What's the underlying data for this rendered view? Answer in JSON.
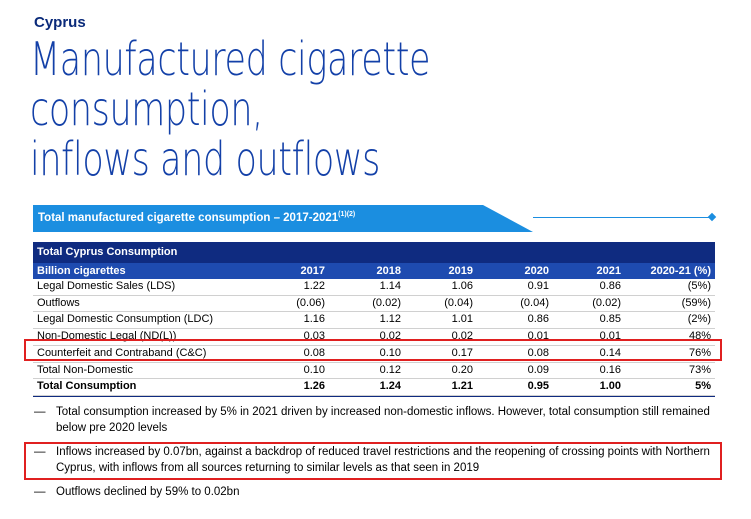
{
  "header": {
    "country": "Cyprus",
    "title_line1": "Manufactured cigarette consumption,",
    "title_line2": "inflows and outflows"
  },
  "banner": {
    "title": "Total manufactured cigarette consumption – 2017-2021",
    "superscript": "(1)(2)"
  },
  "table": {
    "section_title": "Total Cyprus Consumption",
    "columns": [
      "Billion cigarettes",
      "2017",
      "2018",
      "2019",
      "2020",
      "2021",
      "2020-21 (%)"
    ],
    "rows": [
      {
        "label": "Legal Domestic Sales (LDS)",
        "values": [
          "1.22",
          "1.14",
          "1.06",
          "0.91",
          "0.86",
          "(5%)"
        ]
      },
      {
        "label": "Outflows",
        "values": [
          "(0.06)",
          "(0.02)",
          "(0.04)",
          "(0.04)",
          "(0.02)",
          "(59%)"
        ]
      },
      {
        "label": "Legal Domestic Consumption (LDC)",
        "values": [
          "1.16",
          "1.12",
          "1.01",
          "0.86",
          "0.85",
          "(2%)"
        ]
      },
      {
        "label": "Non-Domestic Legal (ND(L))",
        "values": [
          "0.03",
          "0.02",
          "0.02",
          "0.01",
          "0.01",
          "48%"
        ]
      },
      {
        "label": "Counterfeit and Contraband (C&C)",
        "values": [
          "0.08",
          "0.10",
          "0.17",
          "0.08",
          "0.14",
          "76%"
        ]
      },
      {
        "label": "Total Non-Domestic",
        "values": [
          "0.10",
          "0.12",
          "0.20",
          "0.09",
          "0.16",
          "73%"
        ]
      },
      {
        "label": "Total Consumption",
        "values": [
          "1.26",
          "1.24",
          "1.21",
          "0.95",
          "1.00",
          "5%"
        ]
      }
    ]
  },
  "bullets": {
    "dash": "—",
    "items": [
      "Total consumption increased by 5% in 2021 driven by increased non-domestic inflows. However, total consumption still remained below pre 2020 levels",
      "Inflows increased by 0.07bn, against a backdrop of reduced travel restrictions and the reopening of crossing points with Northern Cyprus, with inflows from all sources returning to similar levels as that seen in 2019",
      "Outflows declined by 59% to 0.02bn"
    ]
  },
  "colors": {
    "title_blue": "#1340a8",
    "banner_blue": "#1b8ee0",
    "table_dark": "#0f2b80",
    "table_header": "#1e4bb0",
    "highlight_red": "#e02020"
  }
}
